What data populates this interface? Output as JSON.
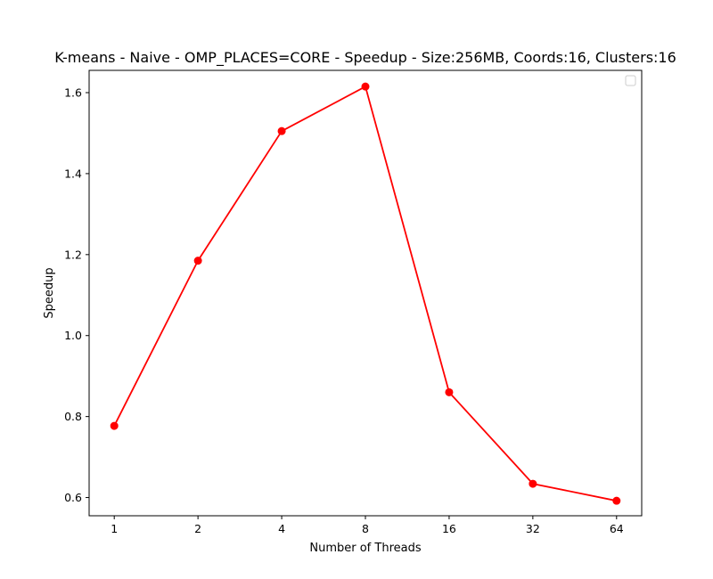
{
  "chart_data": {
    "type": "line",
    "title": "K-means - Naive - OMP_PLACES=CORE - Speedup - Size:256MB, Coords:16, Clusters:16",
    "xlabel": "Number of Threads",
    "ylabel": "Speedup",
    "categories": [
      "1",
      "2",
      "4",
      "8",
      "16",
      "32",
      "64"
    ],
    "series": [
      {
        "values": [
          0.777,
          1.185,
          1.505,
          1.615,
          0.86,
          0.634,
          0.592
        ],
        "color": "#ff0000",
        "marker": "circle"
      }
    ],
    "ylim": [
      0.555,
      1.655
    ],
    "yticks": [
      0.6,
      0.8,
      1.0,
      1.2,
      1.4,
      1.6
    ],
    "ytick_labels": [
      "0.6",
      "0.8",
      "1.0",
      "1.2",
      "1.4",
      "1.6"
    ],
    "grid": false,
    "legend": {
      "position": "top-right",
      "entries": []
    }
  }
}
